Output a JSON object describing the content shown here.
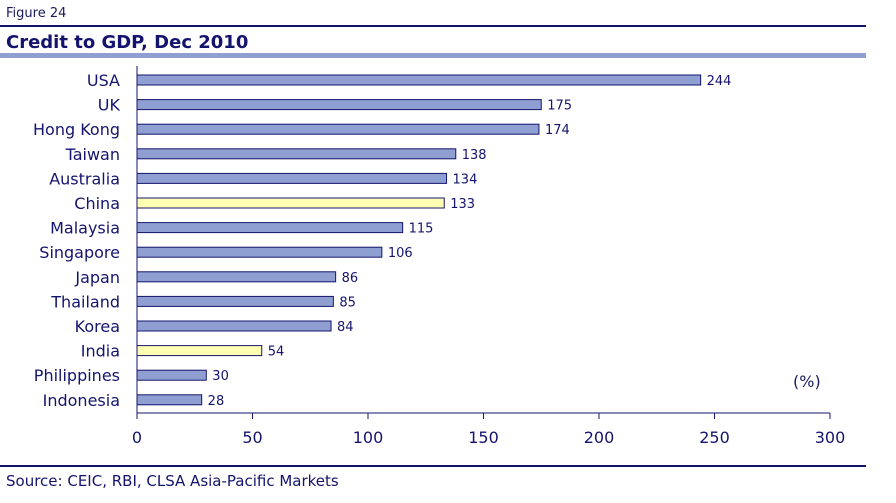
{
  "figure_label": "Figure 24",
  "source": "Source: CEIC, RBI, CLSA Asia-Pacific Markets",
  "chart_data": {
    "type": "bar",
    "orientation": "horizontal",
    "title": "Credit to GDP, Dec 2010",
    "unit_label": "(%)",
    "categories": [
      "USA",
      "UK",
      "Hong Kong",
      "Taiwan",
      "Australia",
      "China",
      "Malaysia",
      "Singapore",
      "Japan",
      "Thailand",
      "Korea",
      "India",
      "Philippines",
      "Indonesia"
    ],
    "values": [
      244,
      175,
      174,
      138,
      134,
      133,
      115,
      106,
      86,
      85,
      84,
      54,
      30,
      28
    ],
    "highlighted": [
      "China",
      "India"
    ],
    "xlim": [
      0,
      300
    ],
    "xticks": [
      0,
      50,
      100,
      150,
      200,
      250,
      300
    ],
    "colors": {
      "bar": "#8f9fd1",
      "highlight": "#ffffb3",
      "outline": "#14146e"
    }
  }
}
